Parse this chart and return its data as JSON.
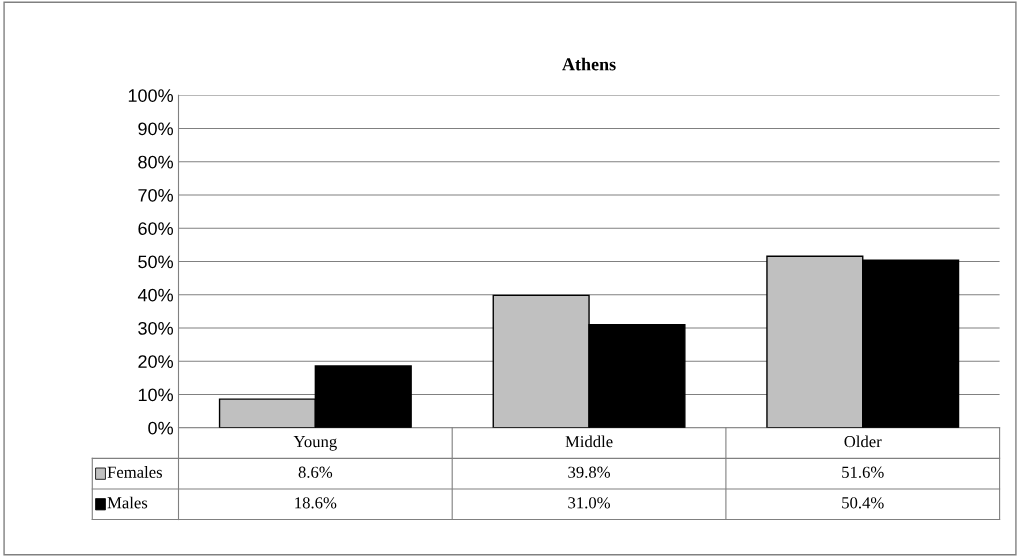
{
  "chart_data": {
    "type": "bar",
    "title": "Athens",
    "categories": [
      "Young",
      "Middle",
      "Older"
    ],
    "series": [
      {
        "name": "Females",
        "color": "#c0c0c0",
        "values": [
          8.6,
          39.8,
          51.6
        ],
        "value_labels": [
          "8.6%",
          "39.8%",
          "51.6%"
        ]
      },
      {
        "name": "Males",
        "color": "#000000",
        "values": [
          18.6,
          31.0,
          50.4
        ],
        "value_labels": [
          "18.6%",
          "31.0%",
          "50.4%"
        ]
      }
    ],
    "ylim": [
      0,
      100
    ],
    "yticks": [
      {
        "value": 0,
        "label": "0%"
      },
      {
        "value": 10,
        "label": "10%"
      },
      {
        "value": 20,
        "label": "20%"
      },
      {
        "value": 30,
        "label": "30%"
      },
      {
        "value": 40,
        "label": "40%"
      },
      {
        "value": 50,
        "label": "50%"
      },
      {
        "value": 60,
        "label": "60%"
      },
      {
        "value": 70,
        "label": "70%"
      },
      {
        "value": 80,
        "label": "80%"
      },
      {
        "value": 90,
        "label": "90%"
      },
      {
        "value": 100,
        "label": "100%"
      }
    ],
    "grid": "y",
    "legend": "bottom"
  }
}
